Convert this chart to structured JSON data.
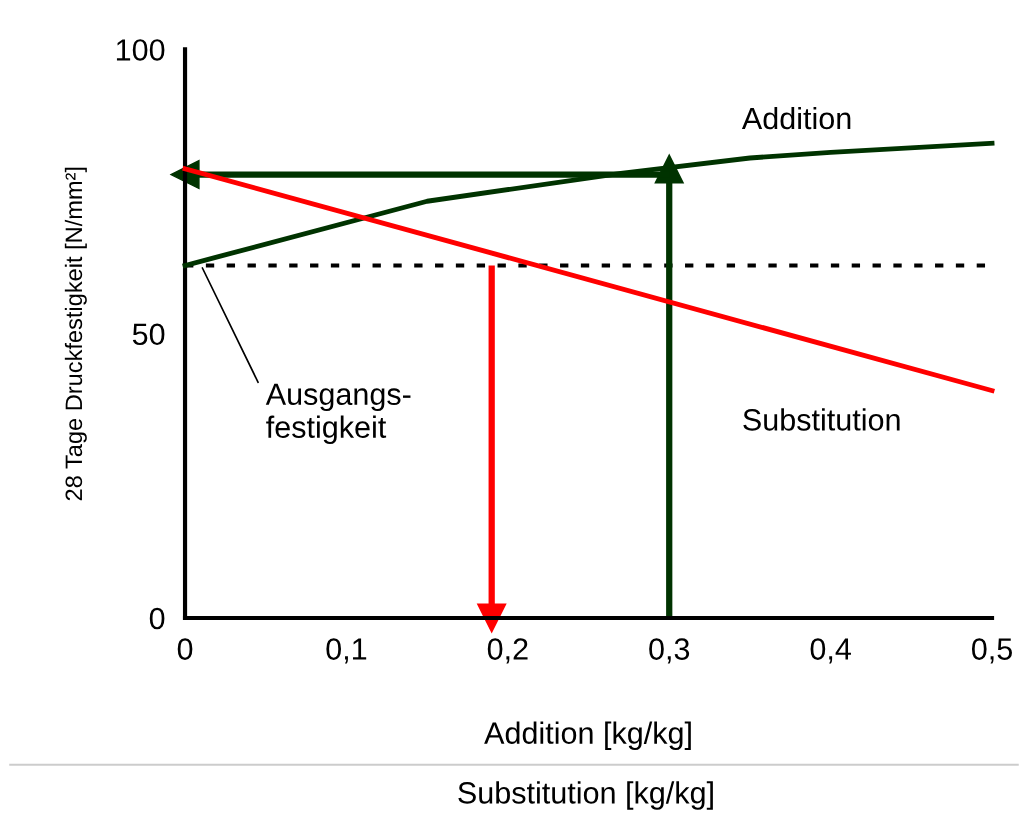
{
  "chart_data": {
    "type": "line",
    "xlabel": "Addition [kg/kg]",
    "ylabel": "28 Tage Druckfestigkeit [N/mm²]",
    "xlim": [
      0,
      0.5
    ],
    "xticks": [
      {
        "value": 0,
        "label": "0"
      },
      {
        "value": 0.1,
        "label": "0,1"
      },
      {
        "value": 0.2,
        "label": "0,2"
      },
      {
        "value": 0.3,
        "label": "0,3"
      },
      {
        "value": 0.4,
        "label": "0,4"
      },
      {
        "value": 0.5,
        "label": "0,5"
      }
    ],
    "ylim": [
      0,
      100
    ],
    "yticks": [
      0,
      50,
      100
    ],
    "grid": false,
    "legend": false,
    "series": [
      {
        "name": "Addition",
        "color": "#003300",
        "x": [
          0,
          0.15,
          0.27,
          0.35,
          0.4,
          0.5
        ],
        "values": [
          62,
          73.3,
          78.2,
          80.9,
          81.9,
          83.5
        ]
      },
      {
        "name": "Substitution",
        "color": "#ff0000",
        "x": [
          0,
          0.5
        ],
        "values": [
          79,
          40
        ]
      },
      {
        "color": "#003300",
        "marker": "triangle",
        "x": [
          0.3,
          0.3
        ],
        "values": [
          0,
          79
        ]
      },
      {
        "color": "#003300",
        "marker": "triangle",
        "x": [
          0.3,
          0
        ],
        "values": [
          78,
          78
        ]
      },
      {
        "color": "#ff0000",
        "marker": "triangle",
        "x": [
          0.19,
          0.19
        ],
        "values": [
          62,
          0
        ]
      }
    ],
    "ref_lines": [
      {
        "axis": "y",
        "value": 62,
        "color": "#000000",
        "line_style": "dotted"
      }
    ],
    "annotations": [
      {
        "text": "Ausgangs-\nfestigkeit",
        "x": 0.01,
        "y": 62
      },
      "Substitution [kg/kg]"
    ]
  }
}
